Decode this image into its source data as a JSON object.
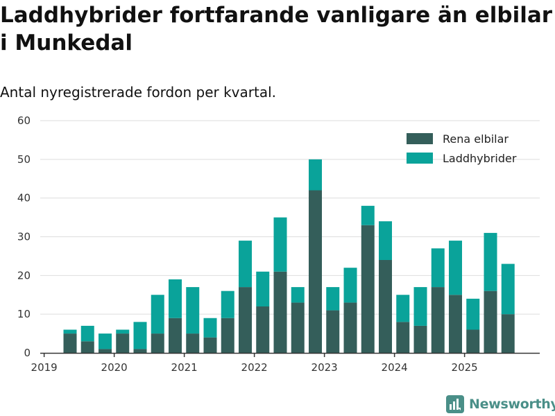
{
  "title": "Laddhybrider fortfarande vanligare än elbilar i Munkedal",
  "subtitle": "Antal nyregistrerade fordon per kvartal.",
  "brand": {
    "name": "Newsworthy",
    "icon": "newsworthy-logo-icon",
    "color": "#4a8f88"
  },
  "colors": {
    "elbilar": "#345e5a",
    "laddhybrider": "#0aa39a",
    "grid": "#dddddd",
    "axis": "#333333"
  },
  "chart_data": {
    "type": "bar",
    "stacked": true,
    "title": "Laddhybrider fortfarande vanligare än elbilar i Munkedal",
    "subtitle": "Antal nyregistrerade fordon per kvartal.",
    "xlabel": "",
    "ylabel": "",
    "ylim": [
      0,
      60
    ],
    "yticks": [
      0,
      10,
      20,
      30,
      40,
      50,
      60
    ],
    "grid": true,
    "legend_position": "top-right",
    "categories": [
      "2019 Q2",
      "2019 Q3",
      "2019 Q4",
      "2020 Q1",
      "2020 Q2",
      "2020 Q3",
      "2020 Q4",
      "2021 Q1",
      "2021 Q2",
      "2021 Q3",
      "2021 Q4",
      "2022 Q1",
      "2022 Q2",
      "2022 Q3",
      "2022 Q4",
      "2023 Q1",
      "2023 Q2",
      "2023 Q3",
      "2023 Q4",
      "2024 Q1",
      "2024 Q2",
      "2024 Q3",
      "2024 Q4",
      "2025 Q1",
      "2025 Q2",
      "2025 Q3"
    ],
    "xtick_labels": [
      "2019",
      "2020",
      "2021",
      "2022",
      "2023",
      "2024",
      "2025"
    ],
    "series": [
      {
        "name": "Rena elbilar",
        "color": "#345e5a",
        "values": [
          5,
          3,
          1,
          5,
          1,
          5,
          9,
          5,
          4,
          9,
          17,
          12,
          21,
          13,
          42,
          11,
          13,
          33,
          24,
          8,
          7,
          17,
          15,
          6,
          16,
          10
        ]
      },
      {
        "name": "Laddhybrider",
        "color": "#0aa39a",
        "values": [
          1,
          4,
          4,
          1,
          7,
          10,
          10,
          12,
          5,
          7,
          12,
          9,
          14,
          4,
          8,
          6,
          9,
          5,
          10,
          7,
          10,
          10,
          14,
          8,
          15,
          13
        ]
      }
    ]
  }
}
